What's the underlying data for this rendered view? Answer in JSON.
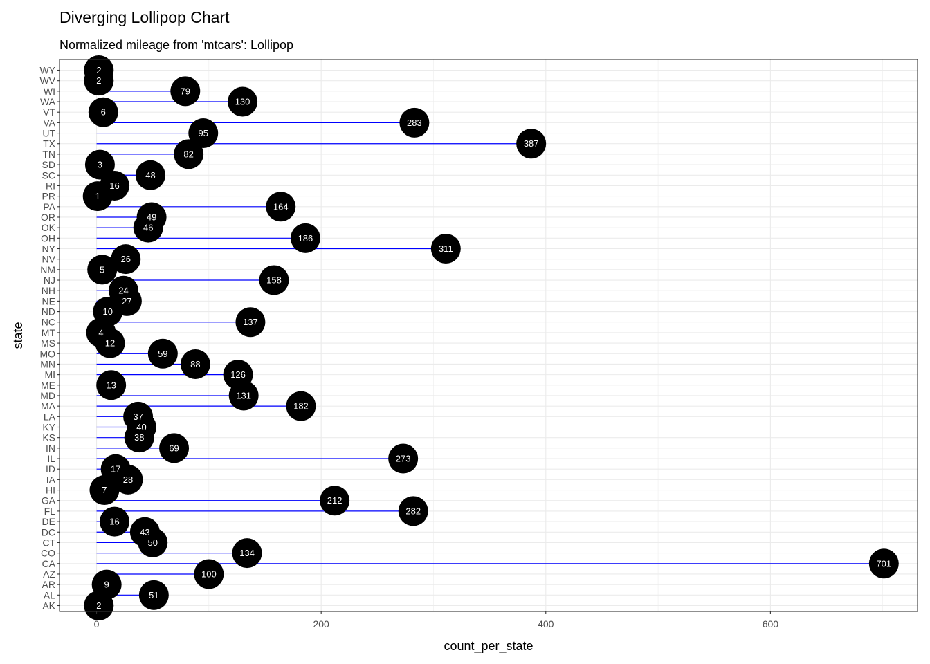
{
  "chart_data": {
    "type": "lollipop",
    "title": "Diverging Lollipop Chart",
    "subtitle": "Normalized mileage from 'mtcars': Lollipop",
    "xlabel": "count_per_state",
    "ylabel": "state",
    "xlim": [
      -33,
      731
    ],
    "xticks": [
      0,
      200,
      400,
      600
    ],
    "grid": true,
    "legend": "none",
    "categories": [
      "AK",
      "AL",
      "AR",
      "AZ",
      "CA",
      "CO",
      "CT",
      "DC",
      "DE",
      "FL",
      "GA",
      "HI",
      "IA",
      "ID",
      "IL",
      "IN",
      "KS",
      "KY",
      "LA",
      "MA",
      "MD",
      "ME",
      "MI",
      "MN",
      "MO",
      "MS",
      "MT",
      "NC",
      "ND",
      "NE",
      "NH",
      "NJ",
      "NM",
      "NV",
      "NY",
      "OH",
      "OK",
      "OR",
      "PA",
      "PR",
      "RI",
      "SC",
      "SD",
      "TN",
      "TX",
      "UT",
      "VA",
      "VT",
      "WA",
      "WI",
      "WV",
      "WY"
    ],
    "values": [
      2,
      51,
      9,
      100,
      701,
      134,
      50,
      43,
      16,
      282,
      212,
      7,
      28,
      17,
      273,
      69,
      38,
      40,
      37,
      182,
      131,
      13,
      126,
      88,
      59,
      12,
      4,
      137,
      10,
      27,
      24,
      158,
      5,
      26,
      311,
      186,
      46,
      49,
      164,
      1,
      16,
      48,
      3,
      82,
      387,
      95,
      283,
      6,
      130,
      79,
      2,
      2
    ],
    "colors": {
      "stem": "#0000ff",
      "point": "#000000",
      "label": "#ffffff",
      "grid": "#ebebeb",
      "border": "#333333"
    }
  }
}
